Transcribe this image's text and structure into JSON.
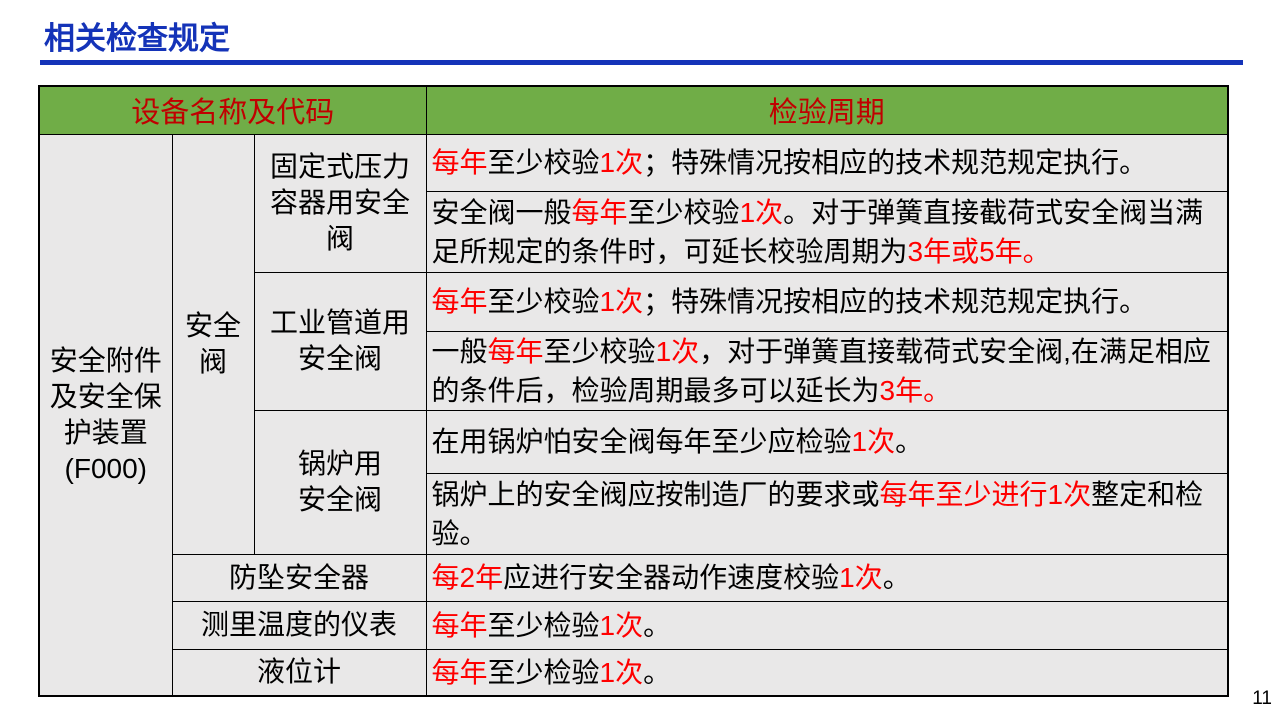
{
  "title": "相关检查规定",
  "page_number": "11",
  "colors": {
    "title_blue": "#1433B8",
    "header_green": "#70AD47",
    "header_red": "#C00000",
    "highlight_red": "#FF0000",
    "cell_gray": "#E9E8E8",
    "border_black": "#000000"
  },
  "table": {
    "headers": {
      "equipment": "设备名称及代码",
      "period": "检验周期"
    },
    "equipment_group": "安全附件\n及安全保\n护装置\n(F000)",
    "valve_group": "安全\n阀",
    "valve_types": {
      "fixed_pressure_vessel": "固定式压力\n容器用安全\n阀",
      "industrial_pipeline": "工业管道用\n安全阀",
      "boiler": "锅炉用\n安全阀"
    },
    "other_equipment": {
      "fall_arrester": "防坠安全器",
      "temperature_instrument": "测里温度的仪表",
      "level_gauge": "液位计"
    },
    "periods": [
      [
        {
          "text": "每年",
          "red": true
        },
        {
          "text": "至少校验",
          "red": false
        },
        {
          "text": "1次",
          "red": true
        },
        {
          "text": "；特殊情况按相应的技术规范规定执行。",
          "red": false
        }
      ],
      [
        {
          "text": "安全阀一般",
          "red": false
        },
        {
          "text": "每年",
          "red": true
        },
        {
          "text": "至少校验",
          "red": false
        },
        {
          "text": "1次",
          "red": true
        },
        {
          "text": "。对于弹簧直接截荷式安全阀当满足所规定的条件时，可延长校验周期为",
          "red": false
        },
        {
          "text": "3年或5年。",
          "red": true
        }
      ],
      [
        {
          "text": "每年",
          "red": true
        },
        {
          "text": "至少校验",
          "red": false
        },
        {
          "text": "1次",
          "red": true
        },
        {
          "text": "；特殊情况按相应的技术规范规定执行。",
          "red": false
        }
      ],
      [
        {
          "text": "一般",
          "red": false
        },
        {
          "text": "每年",
          "red": true
        },
        {
          "text": "至少校验",
          "red": false
        },
        {
          "text": "1次",
          "red": true
        },
        {
          "text": "，对于弹簧直接载荷式安全阀,在满足相应的条件后，检验周期最多可以延长为",
          "red": false
        },
        {
          "text": "3年。",
          "red": true
        }
      ],
      [
        {
          "text": "在用锅炉怕安全阀每年至少应检验",
          "red": false
        },
        {
          "text": "1次",
          "red": true
        },
        {
          "text": "。",
          "red": false
        }
      ],
      [
        {
          "text": "锅炉上的安全阀应按制造厂的要求或",
          "red": false
        },
        {
          "text": "每年至少进行1次",
          "red": true
        },
        {
          "text": "整定和检验。",
          "red": false
        }
      ],
      [
        {
          "text": "每2年",
          "red": true
        },
        {
          "text": "应进行安全器动作速度校验",
          "red": false
        },
        {
          "text": "1次",
          "red": true
        },
        {
          "text": "。",
          "red": false
        }
      ],
      [
        {
          "text": "每年",
          "red": true
        },
        {
          "text": "至少检验",
          "red": false
        },
        {
          "text": "1次",
          "red": true
        },
        {
          "text": "。",
          "red": false
        }
      ],
      [
        {
          "text": "每年",
          "red": true
        },
        {
          "text": "至少检验",
          "red": false
        },
        {
          "text": "1次",
          "red": true
        },
        {
          "text": "。",
          "red": false
        }
      ]
    ]
  }
}
